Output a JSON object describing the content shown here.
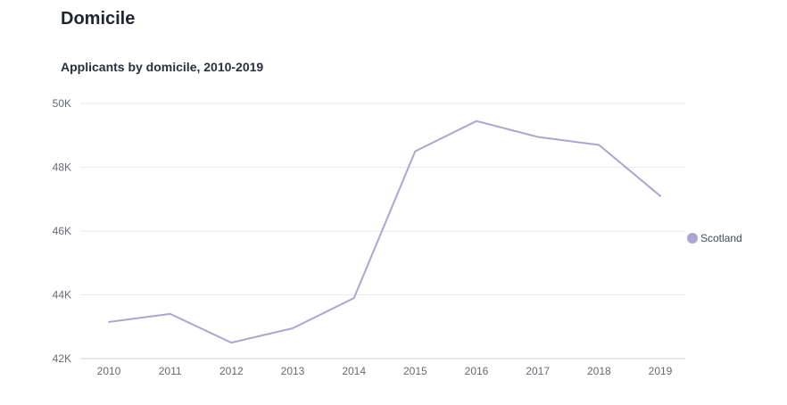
{
  "page": {
    "section_title": "Domicile"
  },
  "chart_data": {
    "type": "line",
    "title": "Applicants by domicile, 2010-2019",
    "xlabel": "",
    "ylabel": "",
    "categories": [
      "2010",
      "2011",
      "2012",
      "2013",
      "2014",
      "2015",
      "2016",
      "2017",
      "2018",
      "2019"
    ],
    "series": [
      {
        "name": "Scotland",
        "color": "#aba6d1",
        "values": [
          43150,
          43400,
          42500,
          42950,
          43900,
          48500,
          49450,
          48950,
          48700,
          47100
        ]
      }
    ],
    "ylim": [
      42000,
      50000
    ],
    "yticks": [
      {
        "value": 42000,
        "label": "42K"
      },
      {
        "value": 44000,
        "label": "44K"
      },
      {
        "value": 46000,
        "label": "46K"
      },
      {
        "value": 48000,
        "label": "48K"
      },
      {
        "value": 50000,
        "label": "50K"
      }
    ],
    "grid": true,
    "legend_position": "right"
  }
}
